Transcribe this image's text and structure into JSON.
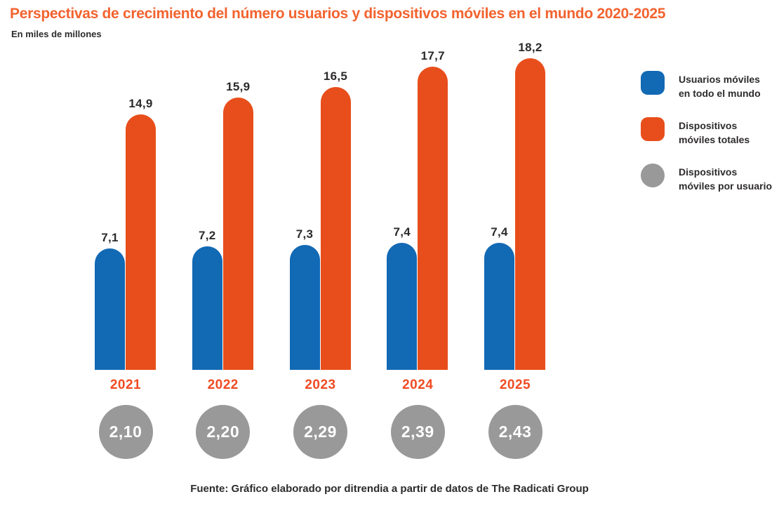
{
  "title": "Perspectivas de crecimiento del número usuarios y dispositivos móviles en el mundo 2020-2025",
  "subtitle": "En miles de millones",
  "source": "Fuente: Gráfico elaborado por ditrendia a partir de datos de The Radicati Group",
  "colors": {
    "title_orange": "#f2632f",
    "bar_blue": "#1269b4",
    "bar_orange": "#e84e1b",
    "year_orange": "#f04b23",
    "circle_gray": "#9a9999",
    "text_dark": "#2d2a2b",
    "circle_text": "#ffffff",
    "background": "#ffffff"
  },
  "legend": {
    "items": [
      {
        "swatch": "blue-rounded-square",
        "label": "Usuarios móviles en todo el mundo"
      },
      {
        "swatch": "orange-rounded-square",
        "label": "Dispositivos móviles totales"
      },
      {
        "swatch": "gray-circle",
        "label": "Dispositivos móviles por usuario"
      }
    ]
  },
  "chart_data": {
    "type": "bar",
    "title": "Perspectivas de crecimiento del número usuarios y dispositivos móviles en el mundo 2020-2025",
    "unit_note": "En miles de millones",
    "categories": [
      "2021",
      "2022",
      "2023",
      "2024",
      "2025"
    ],
    "series": [
      {
        "name": "Usuarios móviles en todo el mundo",
        "color": "#1269b4",
        "shape": "bar",
        "values": [
          7.1,
          7.2,
          7.3,
          7.4,
          7.4
        ]
      },
      {
        "name": "Dispositivos móviles totales",
        "color": "#e84e1b",
        "shape": "bar",
        "values": [
          14.9,
          15.9,
          16.5,
          17.7,
          18.2
        ]
      },
      {
        "name": "Dispositivos móviles por usuario",
        "color": "#9a9999",
        "shape": "circle",
        "values": [
          2.1,
          2.2,
          2.29,
          2.39,
          2.43
        ]
      }
    ],
    "value_labels": {
      "users": [
        "7,1",
        "7,2",
        "7,3",
        "7,4",
        "7,4"
      ],
      "devices": [
        "14,9",
        "15,9",
        "16,5",
        "17,7",
        "18,2"
      ],
      "ratio": [
        "2,10",
        "2,20",
        "2,29",
        "2,39",
        "2,43"
      ]
    },
    "ylim": [
      0,
      18.6
    ],
    "grid": false,
    "axes_visible": false,
    "legend_position": "right",
    "decimal_separator": ","
  }
}
